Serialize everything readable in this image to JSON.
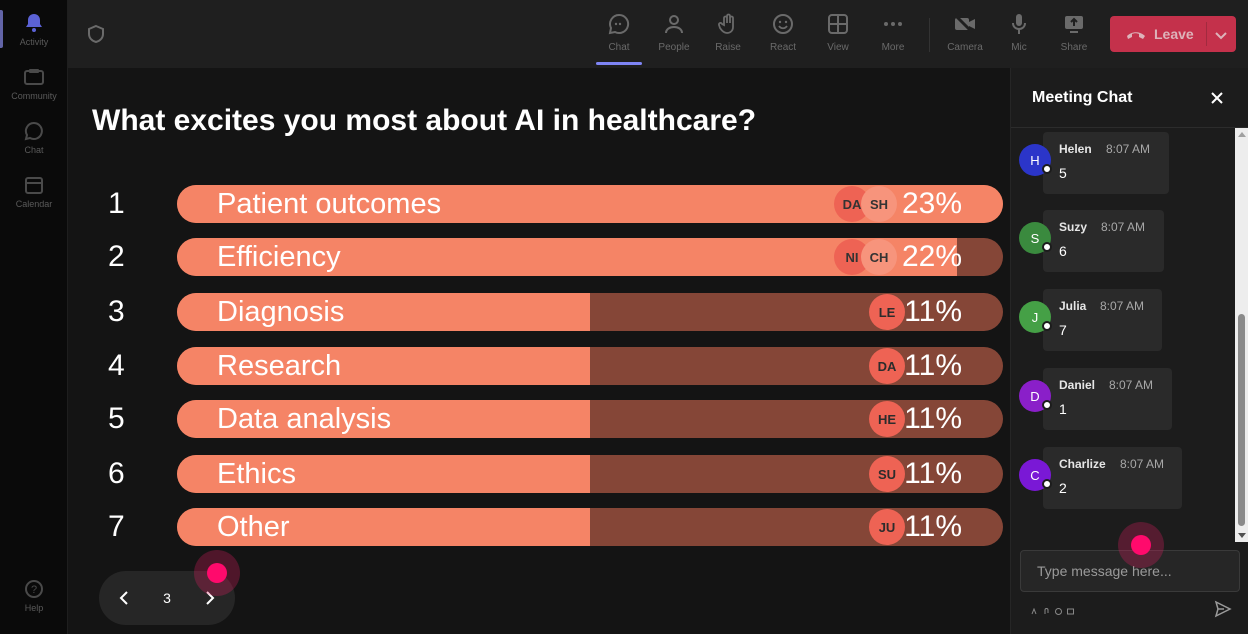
{
  "rail": {
    "items": [
      {
        "label": "Activity",
        "icon": "bell-icon"
      },
      {
        "label": "Community",
        "icon": "community-icon"
      },
      {
        "label": "Chat",
        "icon": "chat-icon"
      },
      {
        "label": "Calendar",
        "icon": "calendar-icon"
      }
    ],
    "help_label": "Help"
  },
  "toolbar": {
    "chat": "Chat",
    "people": "People",
    "raise": "Raise",
    "react": "React",
    "view": "View",
    "more": "More",
    "camera": "Camera",
    "mic": "Mic",
    "share": "Share",
    "leave": "Leave",
    "active_tab": "Chat",
    "leave_color": "#c4314b"
  },
  "poll": {
    "question": "What excites you most about AI in healthcare?",
    "options": [
      {
        "num": "1",
        "label": "Patient outcomes",
        "pct": "23%",
        "fraction": 1.0,
        "voters": [
          "DA",
          "SH"
        ]
      },
      {
        "num": "2",
        "label": "Efficiency",
        "pct": "22%",
        "fraction": 0.944,
        "voters": [
          "NI",
          "CH"
        ]
      },
      {
        "num": "3",
        "label": "Diagnosis",
        "pct": "11%",
        "fraction": 0.5,
        "voters": [
          "LE"
        ]
      },
      {
        "num": "4",
        "label": "Research",
        "pct": "11%",
        "fraction": 0.5,
        "voters": [
          "DA"
        ]
      },
      {
        "num": "5",
        "label": "Data analysis",
        "pct": "11%",
        "fraction": 0.5,
        "voters": [
          "HE"
        ]
      },
      {
        "num": "6",
        "label": "Ethics",
        "pct": "11%",
        "fraction": 0.5,
        "voters": [
          "SU"
        ]
      },
      {
        "num": "7",
        "label": "Other",
        "pct": "11%",
        "fraction": 0.5,
        "voters": [
          "JU"
        ]
      }
    ],
    "page": "3",
    "bar_fill_color": "#f58466",
    "bar_track_color": "#854637"
  },
  "chat": {
    "title": "Meeting Chat",
    "messages": [
      {
        "initial": "H",
        "name": "Helen",
        "time": "8:07 AM",
        "text": "5",
        "color": "#2b35c9"
      },
      {
        "initial": "S",
        "name": "Suzy",
        "time": "8:07 AM",
        "text": "6",
        "color": "#3a8a3e"
      },
      {
        "initial": "J",
        "name": "Julia",
        "time": "8:07 AM",
        "text": "7",
        "color": "#45a046"
      },
      {
        "initial": "D",
        "name": "Daniel",
        "time": "8:07 AM",
        "text": "1",
        "color": "#8a1fc9"
      },
      {
        "initial": "C",
        "name": "Charlize",
        "time": "8:07 AM",
        "text": "2",
        "color": "#7a18d6"
      }
    ],
    "placeholder": "Type message here..."
  }
}
